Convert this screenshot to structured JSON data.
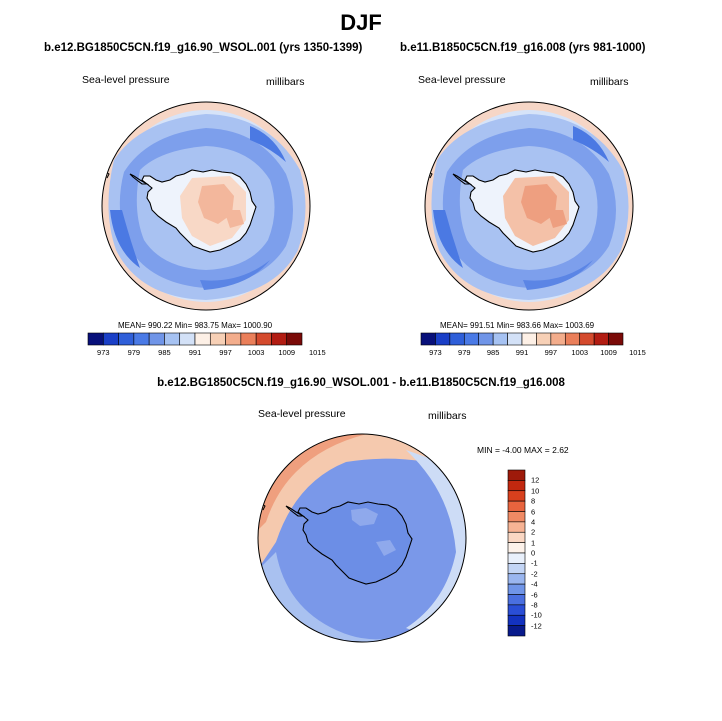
{
  "season_title": "DJF",
  "colors": {
    "scale": [
      "#08107a",
      "#1a3fc7",
      "#2f5fd9",
      "#4a7ae6",
      "#7095e8",
      "#a6c2f2",
      "#d3e1f7",
      "#fdf0e6",
      "#f7d0b6",
      "#f3ad8c",
      "#ea7f5a",
      "#d44a2d",
      "#b21c12",
      "#7a0a08"
    ],
    "ocean_dark": "#4a78e2",
    "ocean_mid": "#7d9fec",
    "ocean_light": "#a9c2f2",
    "pale_blue": "#d4e2f8",
    "pale": "#fbf3ec",
    "land_low": "#f9dccb",
    "land_high": "#f3b79c",
    "coast": "#000000"
  },
  "panels": [
    {
      "case_title": "b.e12.BG1850C5CN.f19_g16.90_WSOL.001 (yrs 1350-1399)",
      "field": "Sea-level pressure",
      "units": "millibars",
      "stats": "MEAN= 990.22  Min= 983.75  Max= 1000.90",
      "colorbar_labels": [
        "973",
        "979",
        "985",
        "991",
        "997",
        "1003",
        "1009",
        "1015"
      ]
    },
    {
      "case_title": "b.e11.B1850C5CN.f19_g16.008 (yrs 981-1000)",
      "field": "Sea-level pressure",
      "units": "millibars",
      "stats": "MEAN= 991.51  Min= 983.66  Max= 1003.69",
      "colorbar_labels": [
        "973",
        "979",
        "985",
        "991",
        "997",
        "1003",
        "1009",
        "1015"
      ]
    }
  ],
  "difference": {
    "title": "b.e12.BG1850C5CN.f19_g16.90_WSOL.001 - b.e11.B1850C5CN.f19_g16.008",
    "field": "Sea-level pressure",
    "units": "millibars",
    "stats": "MIN =  -4.00 MAX =   2.62",
    "colorbar_labels": [
      "12",
      "10",
      "8",
      "6",
      "4",
      "2",
      "1",
      "0",
      "-1",
      "-2",
      "-4",
      "-6",
      "-8",
      "-10",
      "-12"
    ],
    "colorbar_colors": [
      "#9e1a0a",
      "#c2280f",
      "#d8401d",
      "#e8643e",
      "#f08a64",
      "#f7b394",
      "#fad7c3",
      "#fdf2ea",
      "#e9f0fb",
      "#c3d5f5",
      "#9ab6ef",
      "#7095e8",
      "#4a6fe0",
      "#2a4ed6",
      "#1332c0",
      "#081a8c"
    ]
  }
}
